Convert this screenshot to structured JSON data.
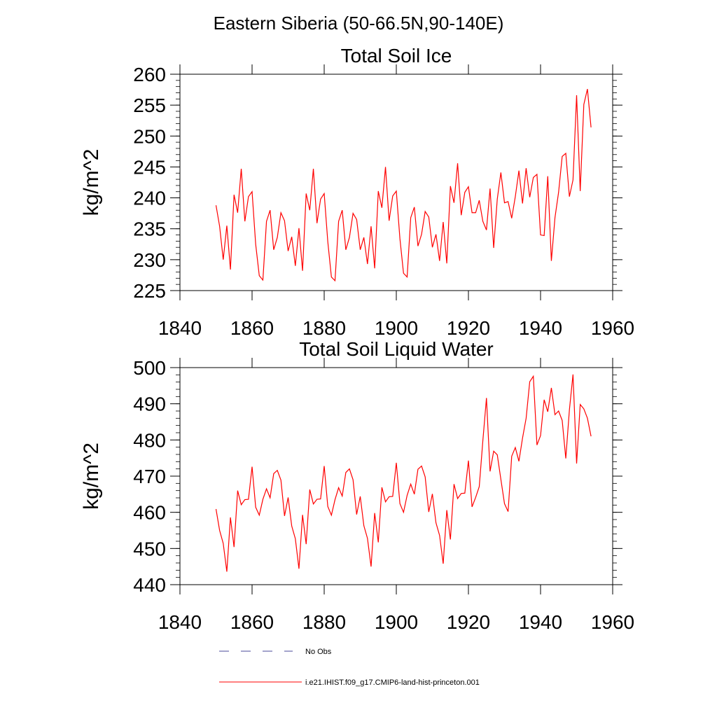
{
  "figure": {
    "title": "Eastern Siberia (50-66.5N,90-140E)"
  },
  "legend": {
    "entries": [
      {
        "label": "No Obs",
        "color": "#4a4a9a",
        "style": "dashed"
      },
      {
        "label": "i.e21.IHIST.f09_g17.CMIP6-land-hist-princeton.001",
        "color": "#ff0000",
        "style": "solid"
      }
    ]
  },
  "chart_data": [
    {
      "type": "line",
      "title": "Total Soil Ice",
      "xlabel": "",
      "ylabel": "kg/m^2",
      "xlim": [
        1840,
        1960
      ],
      "ylim": [
        225,
        260
      ],
      "xticks": [
        1840,
        1860,
        1880,
        1900,
        1920,
        1940,
        1960
      ],
      "yticks": [
        225,
        230,
        235,
        240,
        245,
        250,
        255,
        260
      ],
      "grid": false,
      "series": [
        {
          "name": "i.e21.IHIST.f09_g17.CMIP6-land-hist-princeton.001",
          "color": "#ff0000",
          "x": [
            1850,
            1851,
            1852,
            1853,
            1854,
            1855,
            1856,
            1857,
            1858,
            1859,
            1860,
            1861,
            1862,
            1863,
            1864,
            1865,
            1866,
            1867,
            1868,
            1869,
            1870,
            1871,
            1872,
            1873,
            1874,
            1875,
            1876,
            1877,
            1878,
            1879,
            1880,
            1881,
            1882,
            1883,
            1884,
            1885,
            1886,
            1887,
            1888,
            1889,
            1890,
            1891,
            1892,
            1893,
            1894,
            1895,
            1896,
            1897,
            1898,
            1899,
            1900,
            1901,
            1902,
            1903,
            1904,
            1905,
            1906,
            1907,
            1908,
            1909,
            1910,
            1911,
            1912,
            1913,
            1914,
            1915,
            1916,
            1917,
            1918,
            1919,
            1920,
            1921,
            1922,
            1923,
            1924,
            1925,
            1926,
            1927,
            1928,
            1929,
            1930,
            1931,
            1932,
            1933,
            1934,
            1935,
            1936,
            1937,
            1938,
            1939,
            1940,
            1941,
            1942,
            1943,
            1944,
            1945,
            1946,
            1947,
            1948,
            1949,
            1950,
            1951,
            1952,
            1953,
            1954
          ],
          "values": [
            238.8,
            235.4,
            230.0,
            235.5,
            228.4,
            240.5,
            237.6,
            244.7,
            236.2,
            240.2,
            241.0,
            232.5,
            227.4,
            226.7,
            236.2,
            238.0,
            231.6,
            233.6,
            237.6,
            236.3,
            231.4,
            233.7,
            229.0,
            235.1,
            228.2,
            240.7,
            238.0,
            244.7,
            235.9,
            239.8,
            240.7,
            232.9,
            227.2,
            226.6,
            236.2,
            238.0,
            231.6,
            233.6,
            237.5,
            236.5,
            231.6,
            233.6,
            229.3,
            235.4,
            228.6,
            241.1,
            238.4,
            245.0,
            236.3,
            240.3,
            241.1,
            233.4,
            227.8,
            227.2,
            236.8,
            238.5,
            232.2,
            234.1,
            237.8,
            236.9,
            232.0,
            234.1,
            229.8,
            236.1,
            229.4,
            241.9,
            239.2,
            245.6,
            237.2,
            240.9,
            241.8,
            237.6,
            237.6,
            239.6,
            236.2,
            234.8,
            241.5,
            231.9,
            239.8,
            244.1,
            239.2,
            239.4,
            236.7,
            240.2,
            244.4,
            239.1,
            244.8,
            240.1,
            243.3,
            243.8,
            234.0,
            233.9,
            243.5,
            229.8,
            236.8,
            240.9,
            246.7,
            247.2,
            240.2,
            242.9,
            256.6,
            241.1,
            255.1,
            257.6,
            251.4
          ]
        }
      ]
    },
    {
      "type": "line",
      "title": "Total Soil Liquid Water",
      "xlabel": "",
      "ylabel": "kg/m^2",
      "xlim": [
        1840,
        1960
      ],
      "ylim": [
        440,
        500
      ],
      "xticks": [
        1840,
        1860,
        1880,
        1900,
        1920,
        1940,
        1960
      ],
      "yticks": [
        440,
        450,
        460,
        470,
        480,
        490,
        500
      ],
      "grid": false,
      "series": [
        {
          "name": "i.e21.IHIST.f09_g17.CMIP6-land-hist-princeton.001",
          "color": "#ff0000",
          "x": [
            1850,
            1851,
            1852,
            1853,
            1854,
            1855,
            1856,
            1857,
            1858,
            1859,
            1860,
            1861,
            1862,
            1863,
            1864,
            1865,
            1866,
            1867,
            1868,
            1869,
            1870,
            1871,
            1872,
            1873,
            1874,
            1875,
            1876,
            1877,
            1878,
            1879,
            1880,
            1881,
            1882,
            1883,
            1884,
            1885,
            1886,
            1887,
            1888,
            1889,
            1890,
            1891,
            1892,
            1893,
            1894,
            1895,
            1896,
            1897,
            1898,
            1899,
            1900,
            1901,
            1902,
            1903,
            1904,
            1905,
            1906,
            1907,
            1908,
            1909,
            1910,
            1911,
            1912,
            1913,
            1914,
            1915,
            1916,
            1917,
            1918,
            1919,
            1920,
            1921,
            1922,
            1923,
            1924,
            1925,
            1926,
            1927,
            1928,
            1929,
            1930,
            1931,
            1932,
            1933,
            1934,
            1935,
            1936,
            1937,
            1938,
            1939,
            1940,
            1941,
            1942,
            1943,
            1944,
            1945,
            1946,
            1947,
            1948,
            1949,
            1950,
            1951,
            1952,
            1953,
            1954
          ],
          "values": [
            460.9,
            455.0,
            451.4,
            443.6,
            458.6,
            450.4,
            466.0,
            462.1,
            463.5,
            463.6,
            472.6,
            461.4,
            459.2,
            463.6,
            466.5,
            464.0,
            470.7,
            471.6,
            468.9,
            459.0,
            464.1,
            456.2,
            452.7,
            444.4,
            459.3,
            451.2,
            466.3,
            462.3,
            463.6,
            463.7,
            472.8,
            461.6,
            459.2,
            463.5,
            466.8,
            464.5,
            471.0,
            472.0,
            469.0,
            459.4,
            464.4,
            456.3,
            452.8,
            445.0,
            459.8,
            451.7,
            466.9,
            462.9,
            464.3,
            464.4,
            473.7,
            462.4,
            460.0,
            464.7,
            467.8,
            465.0,
            471.9,
            472.8,
            469.8,
            460.1,
            465.1,
            457.1,
            453.6,
            445.8,
            460.6,
            452.5,
            467.8,
            463.8,
            465.2,
            465.3,
            474.3,
            461.5,
            464.1,
            467.1,
            479.8,
            491.6,
            471.3,
            476.9,
            475.9,
            469.1,
            462.4,
            460.2,
            475.5,
            477.9,
            474.1,
            480.5,
            486.0,
            496.1,
            497.6,
            478.6,
            481.2,
            491.1,
            487.8,
            494.4,
            487.0,
            488.0,
            485.4,
            474.9,
            488.3,
            498.1,
            473.5,
            489.8,
            488.6,
            486.0,
            481.0
          ]
        }
      ]
    }
  ]
}
